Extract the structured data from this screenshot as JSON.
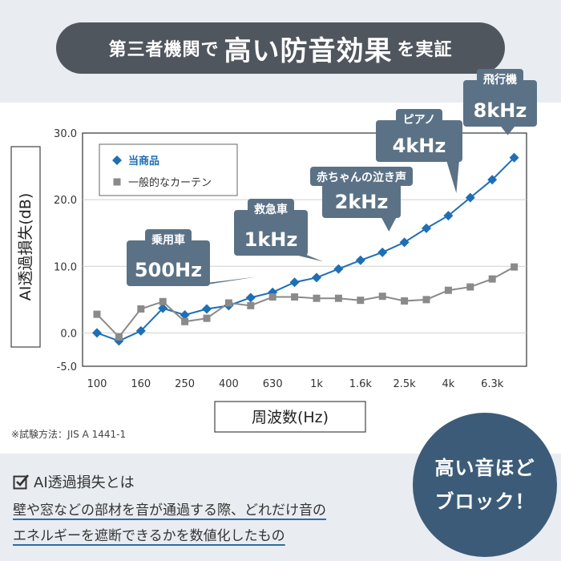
{
  "banner": {
    "prefix": "第三者機関で",
    "emphasis": "高い防音効果",
    "suffix": "を実証"
  },
  "note": "※試験方法：JIS A 1441-1",
  "definition": {
    "title": "AI透過損失とは",
    "line1_plain": "壁や窓などの部材を音が通過する際、",
    "line1_underlined": "どれだけ音の",
    "line2": "エネルギーを遮断できるかを数値化したもの"
  },
  "badge": {
    "line1": "高い音ほど",
    "line2": "ブロック！"
  },
  "colors": {
    "product": "#1e6fb4",
    "curtain": "#8a8a8a",
    "callout": "#5b7286",
    "dark": "#3c5b78"
  },
  "chart_data": {
    "type": "line",
    "ylabel": "AI透過損失(dB)",
    "xlabel": "周波数(Hz)",
    "ylim": [
      -5.0,
      30.0
    ],
    "yticks": [
      "30.0",
      "20.0",
      "10.0",
      "0.0",
      "-5.0"
    ],
    "ytick_values": [
      30,
      20,
      10,
      0,
      -5
    ],
    "xticks": [
      {
        "label": "100",
        "index": 0
      },
      {
        "label": "160",
        "index": 2
      },
      {
        "label": "250",
        "index": 4
      },
      {
        "label": "400",
        "index": 6
      },
      {
        "label": "630",
        "index": 8
      },
      {
        "label": "1k",
        "index": 10
      },
      {
        "label": "1.6k",
        "index": 12
      },
      {
        "label": "2.5k",
        "index": 14
      },
      {
        "label": "4k",
        "index": 16
      },
      {
        "label": "6.3k",
        "index": 18
      }
    ],
    "num_points": 20,
    "series": [
      {
        "name": "当商品",
        "marker": "diamond",
        "values": [
          0.0,
          -1.2,
          0.3,
          3.7,
          2.7,
          3.6,
          4.1,
          5.3,
          6.1,
          7.6,
          8.3,
          9.6,
          10.9,
          12.1,
          13.6,
          15.7,
          17.6,
          20.3,
          23.0,
          26.3
        ]
      },
      {
        "name": "一般的なカーテン",
        "marker": "square",
        "values": [
          2.8,
          -0.6,
          3.6,
          4.7,
          1.7,
          2.2,
          4.5,
          4.1,
          5.4,
          5.4,
          5.2,
          5.2,
          4.9,
          5.5,
          4.8,
          5.0,
          6.4,
          6.9,
          8.1,
          9.9
        ]
      }
    ],
    "callouts": [
      {
        "top": "乗用車",
        "bottom": "500Hz",
        "index": 7
      },
      {
        "top": "救急車",
        "bottom": "1kHz",
        "index": 10
      },
      {
        "top": "赤ちゃんの泣き声",
        "bottom": "2kHz",
        "index": 13
      },
      {
        "top": "ピアノ",
        "bottom": "4kHz",
        "index": 16
      },
      {
        "top": "飛行機",
        "bottom": "8kHz",
        "index": 19
      }
    ]
  }
}
